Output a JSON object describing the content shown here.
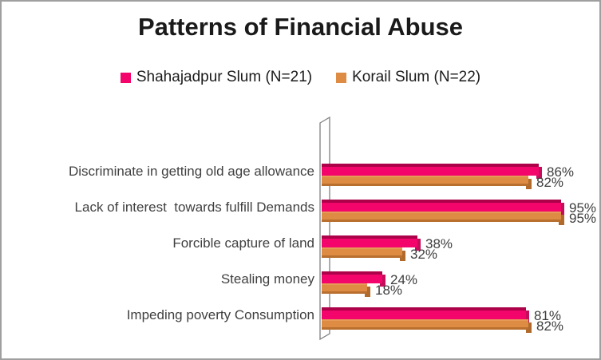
{
  "title": "Patterns of Financial Abuse",
  "legend": {
    "items": [
      {
        "label": "Shahajadpur Slum (N=21)",
        "color": "#f4056b"
      },
      {
        "label": "Korail Slum (N=22)",
        "color": "#de8c44"
      }
    ]
  },
  "colors": {
    "series1": "#f4056b",
    "series1_dark": "#ad0249",
    "series1_cap": "#c40e5b",
    "series2": "#de8c44",
    "series2_light": "#e59a58",
    "series2_dark": "#b96f2e",
    "series2_cap": "#af6a2c",
    "wall_stroke": "#808080",
    "panel_border": "#9f9f9f",
    "label_text": "#404040",
    "title_text": "#1a1a1a"
  },
  "chart_data": {
    "type": "bar",
    "orientation": "horizontal",
    "style": "3d-bevel",
    "title": "Patterns of Financial Abuse",
    "categories": [
      "Discriminate in getting old age allowance",
      "Lack of interest  towards fulfill Demands",
      "Forcible capture of land",
      "Stealing money",
      "Impeding poverty Consumption"
    ],
    "series": [
      {
        "name": "Shahajadpur Slum (N=21)",
        "color": "#f4056b",
        "values": [
          86,
          95,
          38,
          24,
          81
        ]
      },
      {
        "name": "Korail Slum (N=22)",
        "color": "#de8c44",
        "values": [
          82,
          95,
          32,
          18,
          82
        ]
      }
    ],
    "data_labels": {
      "show": true,
      "suffix": "%"
    },
    "xlim": [
      0,
      100
    ],
    "xlabel": "",
    "ylabel": "",
    "grid": false,
    "legend_position": "top"
  }
}
